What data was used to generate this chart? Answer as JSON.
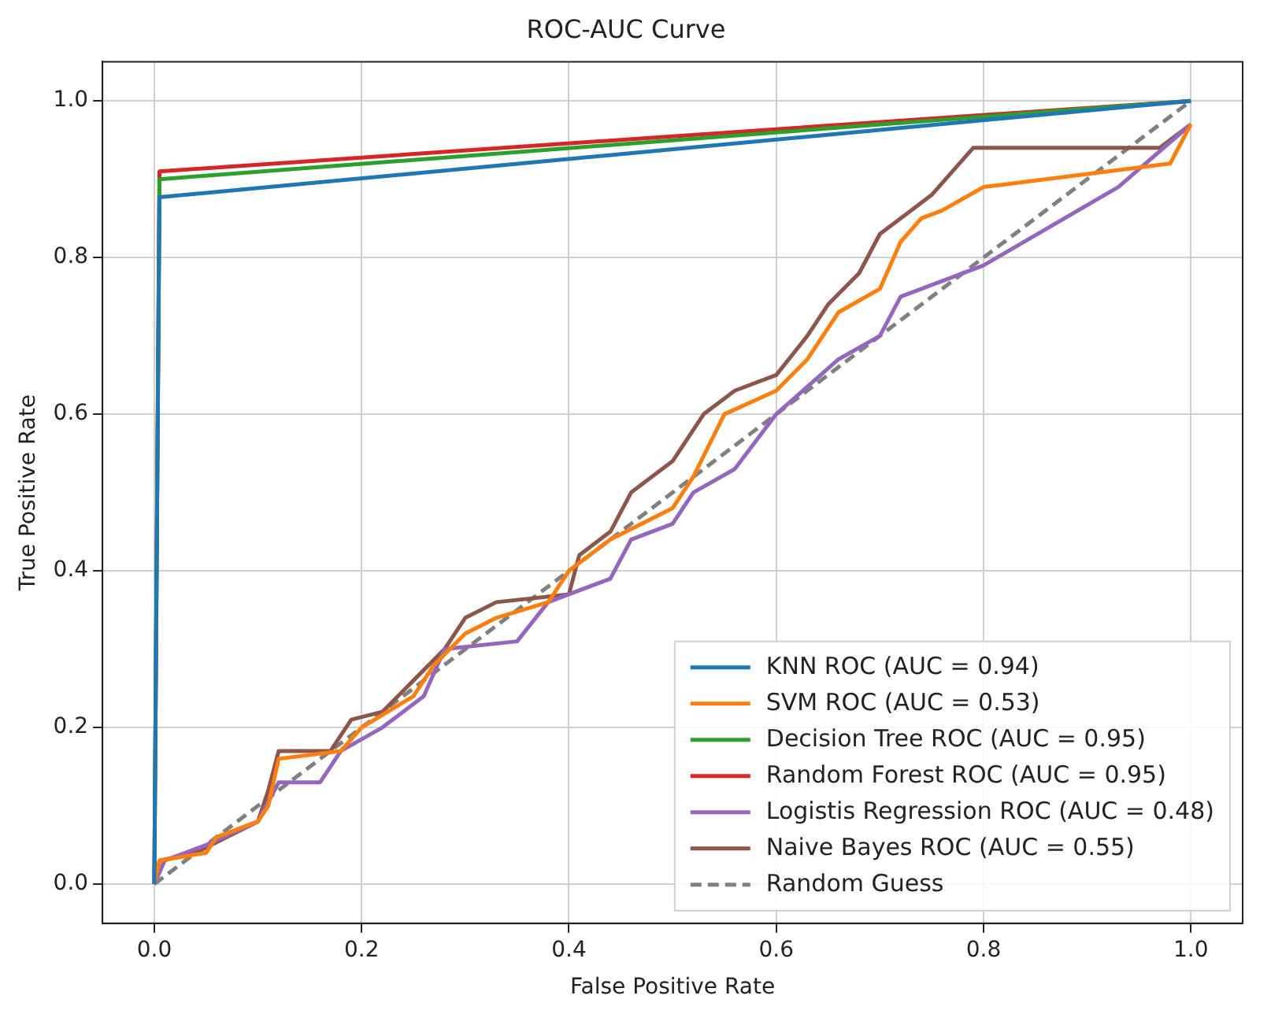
{
  "chart_data": {
    "type": "line",
    "title": "ROC-AUC Curve",
    "xlabel": "False Positive Rate",
    "ylabel": "True Positive Rate",
    "xlim": [
      -0.05,
      1.05
    ],
    "ylim": [
      -0.05,
      1.05
    ],
    "xticks": [
      {
        "value": 0,
        "label": "0.0"
      },
      {
        "value": 0.2,
        "label": "0.2"
      },
      {
        "value": 0.4,
        "label": "0.4"
      },
      {
        "value": 0.6,
        "label": "0.6"
      },
      {
        "value": 0.8,
        "label": "0.8"
      },
      {
        "value": 1,
        "label": "1.0"
      }
    ],
    "yticks": [
      {
        "value": 0,
        "label": "0.0"
      },
      {
        "value": 0.2,
        "label": "0.2"
      },
      {
        "value": 0.4,
        "label": "0.4"
      },
      {
        "value": 0.6,
        "label": "0.6"
      },
      {
        "value": 0.8,
        "label": "0.8"
      },
      {
        "value": 1,
        "label": "1.0"
      }
    ],
    "grid": true,
    "legend": "bottom right",
    "marker": "none",
    "series": [
      {
        "name": "KNN ROC (AUC = 0.94)",
        "color": "#1f77b4",
        "x": [
          0,
          0.005,
          1
        ],
        "values": [
          0,
          0.877,
          1
        ]
      },
      {
        "name": "SVM ROC (AUC = 0.53)",
        "color": "#ff7f0e",
        "x": [
          0,
          0.005,
          0.05,
          0.06,
          0.1,
          0.11,
          0.12,
          0.18,
          0.2,
          0.25,
          0.27,
          0.3,
          0.33,
          0.38,
          0.4,
          0.44,
          0.5,
          0.52,
          0.55,
          0.6,
          0.63,
          0.66,
          0.7,
          0.72,
          0.74,
          0.76,
          0.8,
          0.98,
          1
        ],
        "values": [
          0,
          0.03,
          0.04,
          0.06,
          0.08,
          0.1,
          0.16,
          0.17,
          0.2,
          0.24,
          0.28,
          0.32,
          0.34,
          0.36,
          0.4,
          0.44,
          0.48,
          0.52,
          0.6,
          0.63,
          0.67,
          0.73,
          0.76,
          0.82,
          0.85,
          0.86,
          0.89,
          0.92,
          0.97
        ]
      },
      {
        "name": "Decision Tree ROC (AUC = 0.95)",
        "color": "#2ca02c",
        "x": [
          0,
          0.005,
          1
        ],
        "values": [
          0,
          0.9,
          1
        ]
      },
      {
        "name": "Random Forest ROC (AUC = 0.95)",
        "color": "#d62728",
        "x": [
          0,
          0.005,
          1
        ],
        "values": [
          0,
          0.91,
          1
        ]
      },
      {
        "name": "Logistis Regression ROC (AUC = 0.48)",
        "color": "#9467bd",
        "x": [
          0,
          0.01,
          0.05,
          0.1,
          0.12,
          0.16,
          0.18,
          0.22,
          0.26,
          0.28,
          0.35,
          0.38,
          0.4,
          0.44,
          0.46,
          0.5,
          0.52,
          0.56,
          0.6,
          0.66,
          0.7,
          0.72,
          0.8,
          0.93,
          1
        ],
        "values": [
          0,
          0.03,
          0.05,
          0.08,
          0.13,
          0.13,
          0.17,
          0.2,
          0.24,
          0.3,
          0.31,
          0.36,
          0.37,
          0.39,
          0.44,
          0.46,
          0.5,
          0.53,
          0.6,
          0.67,
          0.7,
          0.75,
          0.79,
          0.89,
          0.97
        ]
      },
      {
        "name": "Naive Bayes ROC (AUC = 0.55)",
        "color": "#8c564b",
        "x": [
          0,
          0.005,
          0.04,
          0.07,
          0.1,
          0.11,
          0.12,
          0.17,
          0.19,
          0.22,
          0.25,
          0.28,
          0.3,
          0.33,
          0.4,
          0.41,
          0.44,
          0.46,
          0.5,
          0.53,
          0.56,
          0.6,
          0.63,
          0.65,
          0.68,
          0.7,
          0.73,
          0.75,
          0.79,
          0.97,
          1
        ],
        "values": [
          0,
          0.03,
          0.04,
          0.06,
          0.08,
          0.12,
          0.17,
          0.17,
          0.21,
          0.22,
          0.26,
          0.3,
          0.34,
          0.36,
          0.37,
          0.42,
          0.45,
          0.5,
          0.54,
          0.6,
          0.63,
          0.65,
          0.7,
          0.74,
          0.78,
          0.83,
          0.86,
          0.88,
          0.94,
          0.94,
          0.97
        ]
      },
      {
        "name": "Random Guess",
        "color": "#808080",
        "line_style": "dashed",
        "x": [
          0,
          1
        ],
        "values": [
          0,
          1
        ]
      }
    ]
  }
}
